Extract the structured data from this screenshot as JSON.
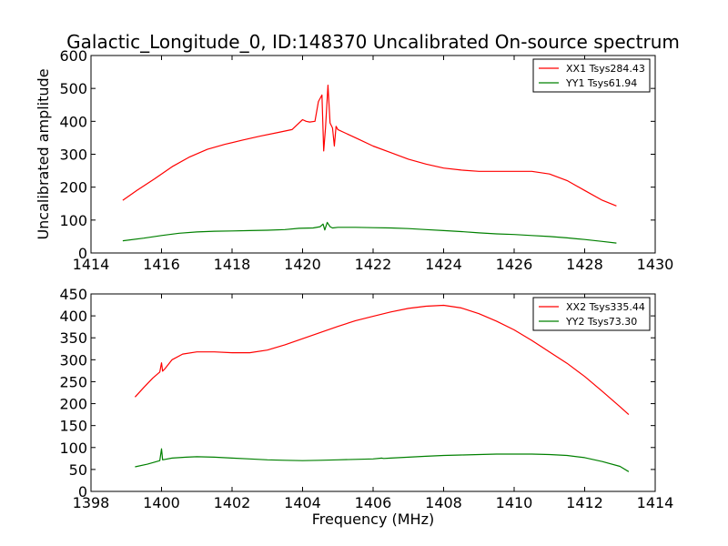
{
  "title": "Galactic_Longitude_0, ID:148370 Uncalibrated On-source spectrum",
  "chart_data": [
    {
      "type": "line",
      "title": "Galactic_Longitude_0, ID:148370 Uncalibrated On-source spectrum",
      "xlabel": "",
      "ylabel": "Uncalibrated amplitude",
      "xlim": [
        1414,
        1430
      ],
      "ylim": [
        0,
        600
      ],
      "xticks": [
        1414,
        1416,
        1418,
        1420,
        1422,
        1424,
        1426,
        1428,
        1430
      ],
      "yticks": [
        0,
        100,
        200,
        300,
        400,
        500,
        600
      ],
      "legend_position": "top-right",
      "series": [
        {
          "name": "XX1 Tsys284.43",
          "color": "#ff0000",
          "x": [
            1414.9,
            1415.3,
            1415.8,
            1416.3,
            1416.8,
            1417.3,
            1417.8,
            1418.3,
            1418.8,
            1419.3,
            1419.7,
            1419.85,
            1420.0,
            1420.1,
            1420.2,
            1420.35,
            1420.45,
            1420.55,
            1420.6,
            1420.65,
            1420.72,
            1420.78,
            1420.85,
            1420.9,
            1420.95,
            1421.0,
            1421.2,
            1421.6,
            1422.0,
            1422.5,
            1423.0,
            1423.5,
            1424.0,
            1424.5,
            1425.0,
            1425.5,
            1426.0,
            1426.5,
            1427.0,
            1427.5,
            1428.0,
            1428.5,
            1428.9
          ],
          "values": [
            160,
            190,
            225,
            262,
            292,
            315,
            330,
            343,
            355,
            366,
            375,
            390,
            405,
            400,
            398,
            400,
            460,
            480,
            310,
            380,
            510,
            395,
            380,
            325,
            385,
            375,
            365,
            345,
            325,
            305,
            285,
            270,
            258,
            252,
            248,
            248,
            248,
            248,
            240,
            220,
            190,
            160,
            143
          ]
        },
        {
          "name": "YY1 Tsys61.94",
          "color": "#008000",
          "x": [
            1414.9,
            1415.5,
            1416.0,
            1416.5,
            1417.0,
            1417.5,
            1418.0,
            1418.5,
            1419.0,
            1419.5,
            1419.9,
            1420.3,
            1420.5,
            1420.58,
            1420.63,
            1420.7,
            1420.78,
            1420.85,
            1421.0,
            1421.5,
            1422.0,
            1422.5,
            1423.0,
            1423.5,
            1424.0,
            1424.5,
            1425.0,
            1425.5,
            1426.0,
            1426.5,
            1427.0,
            1427.5,
            1428.0,
            1428.5,
            1428.9
          ],
          "values": [
            37,
            45,
            53,
            60,
            64,
            66,
            67,
            68,
            69,
            71,
            75,
            76,
            80,
            88,
            70,
            93,
            80,
            76,
            78,
            78,
            77,
            76,
            74,
            71,
            68,
            65,
            61,
            58,
            56,
            53,
            50,
            46,
            41,
            35,
            30
          ]
        }
      ]
    },
    {
      "type": "line",
      "title": "",
      "xlabel": "Frequency (MHz)",
      "ylabel": "",
      "xlim": [
        1398,
        1414
      ],
      "ylim": [
        0,
        450
      ],
      "xticks": [
        1398,
        1400,
        1402,
        1404,
        1406,
        1408,
        1410,
        1412,
        1414
      ],
      "yticks": [
        0,
        50,
        100,
        150,
        200,
        250,
        300,
        350,
        400,
        450
      ],
      "legend_position": "top-right",
      "series": [
        {
          "name": "XX2 Tsys335.44",
          "color": "#ff0000",
          "x": [
            1399.25,
            1399.5,
            1399.75,
            1399.95,
            1400.0,
            1400.03,
            1400.1,
            1400.3,
            1400.6,
            1401.0,
            1401.5,
            1402.0,
            1402.5,
            1403.0,
            1403.5,
            1404.0,
            1404.5,
            1405.0,
            1405.5,
            1406.0,
            1406.5,
            1407.0,
            1407.5,
            1408.0,
            1408.5,
            1409.0,
            1409.5,
            1410.0,
            1410.5,
            1411.0,
            1411.5,
            1412.0,
            1412.5,
            1413.0,
            1413.25
          ],
          "values": [
            215,
            237,
            258,
            272,
            293,
            274,
            280,
            300,
            313,
            318,
            318,
            316,
            316,
            322,
            334,
            348,
            362,
            376,
            389,
            399,
            409,
            417,
            422,
            424,
            418,
            405,
            388,
            368,
            344,
            318,
            292,
            262,
            228,
            193,
            175
          ]
        },
        {
          "name": "YY2 Tsys73.30",
          "color": "#008000",
          "x": [
            1399.25,
            1399.6,
            1399.95,
            1400.0,
            1400.03,
            1400.3,
            1400.7,
            1401.0,
            1401.5,
            1402.0,
            1402.5,
            1403.0,
            1403.5,
            1404.0,
            1404.5,
            1405.0,
            1405.5,
            1406.0,
            1406.25,
            1406.3,
            1406.5,
            1407.0,
            1407.5,
            1408.0,
            1408.5,
            1409.0,
            1409.5,
            1410.0,
            1410.5,
            1411.0,
            1411.5,
            1412.0,
            1412.5,
            1413.0,
            1413.25
          ],
          "values": [
            56,
            62,
            70,
            97,
            72,
            76,
            78,
            79,
            78,
            76,
            74,
            72,
            71,
            70,
            71,
            72,
            73,
            74,
            76,
            75,
            76,
            78,
            80,
            82,
            83,
            84,
            85,
            85,
            85,
            84,
            82,
            77,
            68,
            57,
            45
          ]
        }
      ]
    }
  ]
}
